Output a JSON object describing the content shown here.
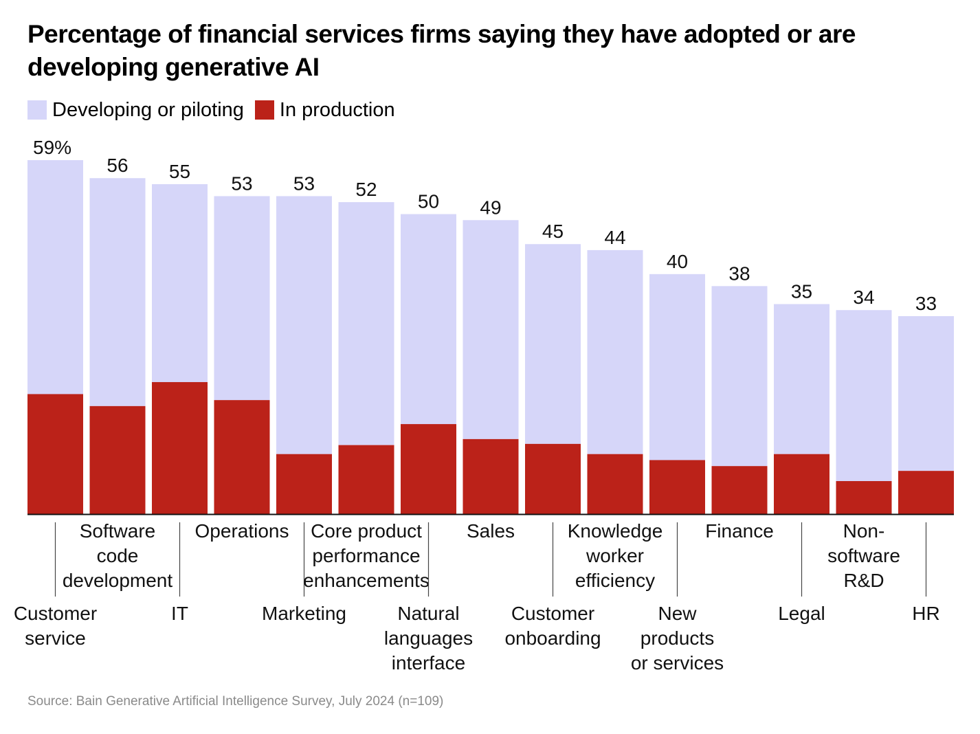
{
  "title": "Percentage of financial services firms saying they have adopted or are developing generative AI",
  "legend": [
    {
      "label": "Developing or piloting",
      "color": "#d6d6f9"
    },
    {
      "label": "In production",
      "color": "#bb2219"
    }
  ],
  "source": "Source: Bain Generative Artificial Intelligence Survey, July 2024 (n=109)",
  "chart_data": {
    "type": "bar",
    "stacked": true,
    "title": "Percentage of financial services firms saying they have adopted or are developing generative AI",
    "categories": [
      "Customer service",
      "Software code development",
      "IT",
      "Operations",
      "Marketing",
      "Core product performance enhancements",
      "Natural languages interface",
      "Sales",
      "Customer onboarding",
      "Knowledge worker efficiency",
      "New products or services",
      "Finance",
      "Legal",
      "Non-software R&D",
      "HR"
    ],
    "category_label_lines": [
      [
        "Customer",
        "service"
      ],
      [
        "Software",
        "code",
        "development"
      ],
      [
        "IT"
      ],
      [
        "Operations"
      ],
      [
        "Marketing"
      ],
      [
        "Core product",
        "performance",
        "enhancements"
      ],
      [
        "Natural",
        "languages",
        "interface"
      ],
      [
        "Sales"
      ],
      [
        "Customer",
        "onboarding"
      ],
      [
        "Knowledge",
        "worker",
        "efficiency"
      ],
      [
        "New",
        "products",
        "or services"
      ],
      [
        "Finance"
      ],
      [
        "Legal"
      ],
      [
        "Non-",
        "software",
        "R&D"
      ],
      [
        "HR"
      ]
    ],
    "total_labels": [
      "59%",
      "56",
      "55",
      "53",
      "53",
      "52",
      "50",
      "49",
      "45",
      "44",
      "40",
      "38",
      "35",
      "34",
      "33"
    ],
    "totals": [
      59,
      56,
      55,
      53,
      53,
      52,
      50,
      49,
      45,
      44,
      40,
      38,
      35,
      34,
      33
    ],
    "series": [
      {
        "name": "In production",
        "color": "#bb2219",
        "values": [
          20,
          18,
          22,
          19,
          10,
          11.5,
          15,
          12.5,
          11.7,
          10,
          9,
          8,
          10,
          5.5,
          7.2
        ]
      },
      {
        "name": "Developing or piloting",
        "color": "#d6d6f9",
        "values": [
          39,
          38,
          33,
          34,
          43,
          40.5,
          35,
          36.5,
          33.3,
          34,
          31,
          30,
          25,
          28.5,
          25.8
        ]
      }
    ],
    "ylim": [
      0,
      59
    ],
    "xlabel": "",
    "ylabel": "",
    "grid": false,
    "legend_position": "top-left"
  }
}
